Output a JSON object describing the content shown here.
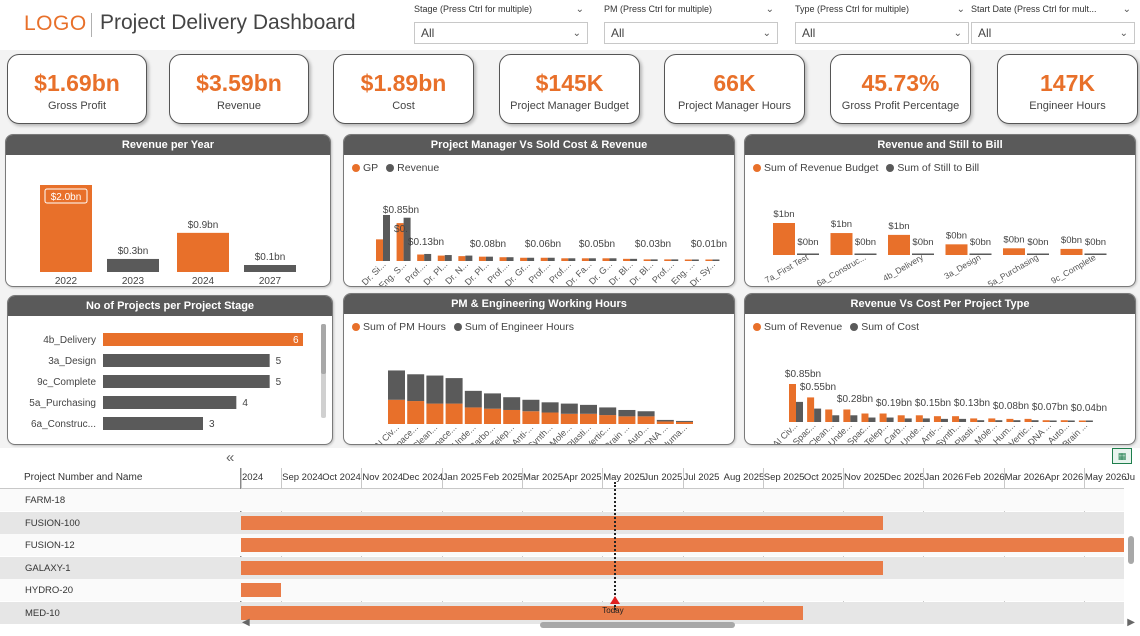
{
  "header": {
    "logo": "LOGO",
    "title": "Project Delivery Dashboard"
  },
  "slicers": [
    {
      "label": "Stage (Press Ctrl for multiple)",
      "value": "All"
    },
    {
      "label": "PM (Press Ctrl for multiple)",
      "value": "All"
    },
    {
      "label": "Type (Press Ctrl for multiple)",
      "value": "All"
    },
    {
      "label": "Start Date (Press Ctrl for mult...",
      "value": "All"
    }
  ],
  "kpis": [
    {
      "value": "$1.69bn",
      "label": "Gross Profit"
    },
    {
      "value": "$3.59bn",
      "label": "Revenue"
    },
    {
      "value": "$1.89bn",
      "label": "Cost"
    },
    {
      "value": "$145K",
      "label": "Project Manager Budget"
    },
    {
      "value": "66K",
      "label": "Project Manager Hours"
    },
    {
      "value": "45.73%",
      "label": "Gross Profit Percentage"
    },
    {
      "value": "147K",
      "label": "Engineer Hours"
    }
  ],
  "colors": {
    "accent": "#e8702a",
    "series2": "#5a5a5a",
    "panel_header": "#5a5a5a",
    "gantt_bar": "#e97c48"
  },
  "chart_data": [
    {
      "id": "revenue_per_year",
      "title": "Revenue per Year",
      "type": "bar",
      "categories": [
        "2022",
        "2023",
        "2024",
        "2027"
      ],
      "values": [
        2.0,
        0.3,
        0.9,
        0.1
      ],
      "data_labels": [
        "$2.0bn",
        "$0.3bn",
        "$0.9bn",
        "$0.1bn"
      ],
      "highlight": [
        true,
        false,
        true,
        false
      ]
    },
    {
      "id": "pm_vs_cost_revenue",
      "title": "Project Manager Vs Sold Cost & Revenue",
      "type": "bar",
      "legend": [
        "GP",
        "Revenue"
      ],
      "categories": [
        "Dr. Si...",
        "Eng. S...",
        "Prof....",
        "Dr. Pl...",
        "Dr. N...",
        "Dr. Pl...",
        "Prof....",
        "Dr. Gr...",
        "Prof....",
        "Prof....",
        "Dr. Fa...",
        "Dr. G...",
        "Dr. Bl...",
        "Dr. Bl...",
        "Prof....",
        "Eng. ...",
        "Dr. Sy..."
      ],
      "series": [
        {
          "name": "GP",
          "values": [
            0.4,
            0.7,
            0.12,
            0.1,
            0.09,
            0.08,
            0.07,
            0.06,
            0.06,
            0.05,
            0.05,
            0.05,
            0.04,
            0.03,
            0.03,
            0.02,
            0.01
          ]
        },
        {
          "name": "Revenue",
          "values": [
            0.85,
            0.8,
            0.13,
            0.11,
            0.1,
            0.08,
            0.07,
            0.06,
            0.06,
            0.05,
            0.05,
            0.05,
            0.04,
            0.03,
            0.03,
            0.02,
            0.01
          ]
        }
      ],
      "data_labels": [
        "$0.85bn",
        "$0.",
        "$0.13bn",
        "$0.08bn",
        "$0.06bn",
        "$0.05bn",
        "$0.03bn",
        "$0.01bn"
      ]
    },
    {
      "id": "revenue_still_to_bill",
      "title": "Revenue and Still to Bill",
      "type": "bar",
      "legend": [
        "Sum of Revenue Budget",
        "Sum of Still to Bill"
      ],
      "categories": [
        "7a_First Test",
        "6a_Construc...",
        "4b_Delivery",
        "3a_Design",
        "5a_Purchasing",
        "9c_Complete"
      ],
      "series": [
        {
          "name": "Sum of Revenue Budget",
          "values": [
            1.05,
            0.72,
            0.66,
            0.35,
            0.22,
            0.2
          ]
        },
        {
          "name": "Sum of Still to Bill",
          "values": [
            0.05,
            0.04,
            0.04,
            0.02,
            0.02,
            0.01
          ]
        }
      ],
      "data_labels": [
        [
          "$1bn",
          "$0bn"
        ],
        [
          "$1bn",
          "$0bn"
        ],
        [
          "$1bn",
          "$0bn"
        ],
        [
          "$0bn",
          "$0bn"
        ],
        [
          "$0bn",
          "$0bn"
        ],
        [
          "$0bn",
          "$0bn"
        ]
      ]
    },
    {
      "id": "projects_per_stage",
      "title": "No of Projects per Project Stage",
      "type": "bar",
      "orientation": "horizontal",
      "categories": [
        "4b_Delivery",
        "3a_Design",
        "9c_Complete",
        "5a_Purchasing",
        "6a_Construc..."
      ],
      "values": [
        6,
        5,
        5,
        4,
        3
      ],
      "highlight": [
        true,
        false,
        false,
        false,
        false
      ]
    },
    {
      "id": "pm_engineering_hours",
      "title": "PM & Engineering Working Hours",
      "type": "bar",
      "stacked": true,
      "legend": [
        "Sum of PM Hours",
        "Sum of Engineer Hours"
      ],
      "categories": [
        "AI Civ...",
        "Space...",
        "Clean...",
        "Space...",
        "Unde...",
        "Carbo...",
        "Telep...",
        "Anti-...",
        "Synth...",
        "Mole...",
        "Plasti...",
        "Vertic...",
        "Brain ...",
        "Auto...",
        "DNA ...",
        "Huma..."
      ],
      "series": [
        {
          "name": "Sum of PM Hours",
          "values": [
            9.5,
            9.0,
            8.0,
            8.0,
            6.5,
            6.0,
            5.5,
            5.0,
            4.5,
            4.0,
            4.0,
            3.5,
            3.0,
            3.0,
            1.0,
            0.8
          ]
        },
        {
          "name": "Sum of Engineer Hours",
          "values": [
            11.5,
            10.5,
            11.0,
            10.0,
            6.5,
            6.0,
            5.0,
            4.5,
            4.0,
            4.0,
            3.5,
            3.0,
            2.5,
            2.0,
            0.6,
            0.4
          ]
        }
      ]
    },
    {
      "id": "revenue_vs_cost_type",
      "title": "Revenue Vs Cost Per Project Type",
      "type": "bar",
      "legend": [
        "Sum of Revenue",
        "Sum of Cost"
      ],
      "categories": [
        "AI Civ...",
        "Spac...",
        "Clean...",
        "Unde...",
        "Spac...",
        "Telep...",
        "Carb...",
        "Unde...",
        "Anti-...",
        "Synth...",
        "Plasti...",
        "Mole...",
        "Hum...",
        "Vertic...",
        "DNA ...",
        "Auto...",
        "Brain ..."
      ],
      "series": [
        {
          "name": "Sum of Revenue",
          "values": [
            0.85,
            0.55,
            0.28,
            0.28,
            0.19,
            0.19,
            0.15,
            0.15,
            0.13,
            0.13,
            0.08,
            0.08,
            0.07,
            0.07,
            0.04,
            0.04,
            0.03
          ]
        },
        {
          "name": "Sum of Cost",
          "values": [
            0.45,
            0.3,
            0.15,
            0.15,
            0.1,
            0.1,
            0.08,
            0.08,
            0.07,
            0.07,
            0.04,
            0.04,
            0.04,
            0.04,
            0.02,
            0.02,
            0.02
          ]
        }
      ],
      "data_labels": [
        "$0.85bn",
        "$0.55bn",
        "$0.28bn",
        "$0.19bn",
        "$0.15bn",
        "$0.13bn",
        "$0.08bn",
        "$0.07bn",
        "$0.04bn"
      ]
    }
  ],
  "gantt": {
    "column_header": "Project Number and Name",
    "months": [
      "2024",
      "Sep 2024",
      "Oct 2024",
      "Nov 2024",
      "Dec 2024",
      "Jan 2025",
      "Feb 2025",
      "Mar 2025",
      "Apr 2025",
      "May 2025",
      "Jun 2025",
      "Jul 2025",
      "Aug 2025",
      "Sep 2025",
      "Oct 2025",
      "Nov 2025",
      "Dec 2025",
      "Jan 2026",
      "Feb 2026",
      "Mar 2026",
      "Apr 2026",
      "May 2026",
      "Ju"
    ],
    "today_label": "Today",
    "rows": [
      {
        "name": "FARM-18",
        "start": null,
        "end": null
      },
      {
        "name": "FUSION-100",
        "start": "2024-08",
        "end": "2025-12"
      },
      {
        "name": "FUSION-12",
        "start": "2024-08",
        "end": "2026-06"
      },
      {
        "name": "GALAXY-1",
        "start": "2024-08",
        "end": "2025-12"
      },
      {
        "name": "HYDRO-20",
        "start": "2024-08",
        "end": "2024-09"
      },
      {
        "name": "MED-10",
        "start": "2024-08",
        "end": "2025-10"
      }
    ]
  }
}
